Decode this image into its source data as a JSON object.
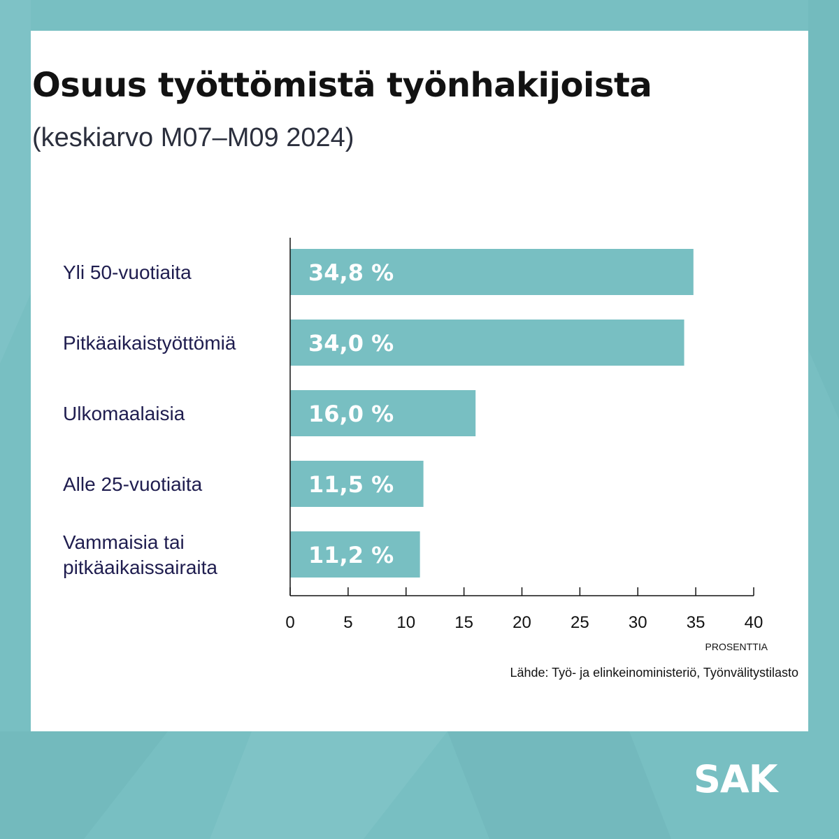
{
  "title": "Osuus työttömistä työnhakijoista",
  "subtitle": "(keskiarvo M07–M09 2024)",
  "source": "Lähde: Työ- ja elinkeinoministeriö, Työnvälitystilasto",
  "logo": "SAK",
  "colors": {
    "background": "#78bfc2",
    "card": "#ffffff",
    "bar": "#78bfc2",
    "category_text": "#1f1d4f"
  },
  "chart_data": {
    "type": "bar",
    "orientation": "horizontal",
    "categories": [
      [
        "Yli 50-vuotiaita"
      ],
      [
        "Pitkäaikaistyöttömiä"
      ],
      [
        "Ulkomaalaisia"
      ],
      [
        "Alle 25-vuotiaita"
      ],
      [
        "Vammaisia tai",
        "pitkäaikaissairaita"
      ]
    ],
    "values": [
      34.8,
      34.0,
      16.0,
      11.5,
      11.2
    ],
    "value_labels": [
      "34,8 %",
      "34,0 %",
      "16,0 %",
      "11,5 %",
      "11,2 %"
    ],
    "xlim": [
      0,
      40
    ],
    "xticks": [
      0,
      5,
      10,
      15,
      20,
      25,
      30,
      35,
      40
    ],
    "xlabel": "PROSENTTIA",
    "ylabel": "",
    "grid": false,
    "legend": "none"
  }
}
